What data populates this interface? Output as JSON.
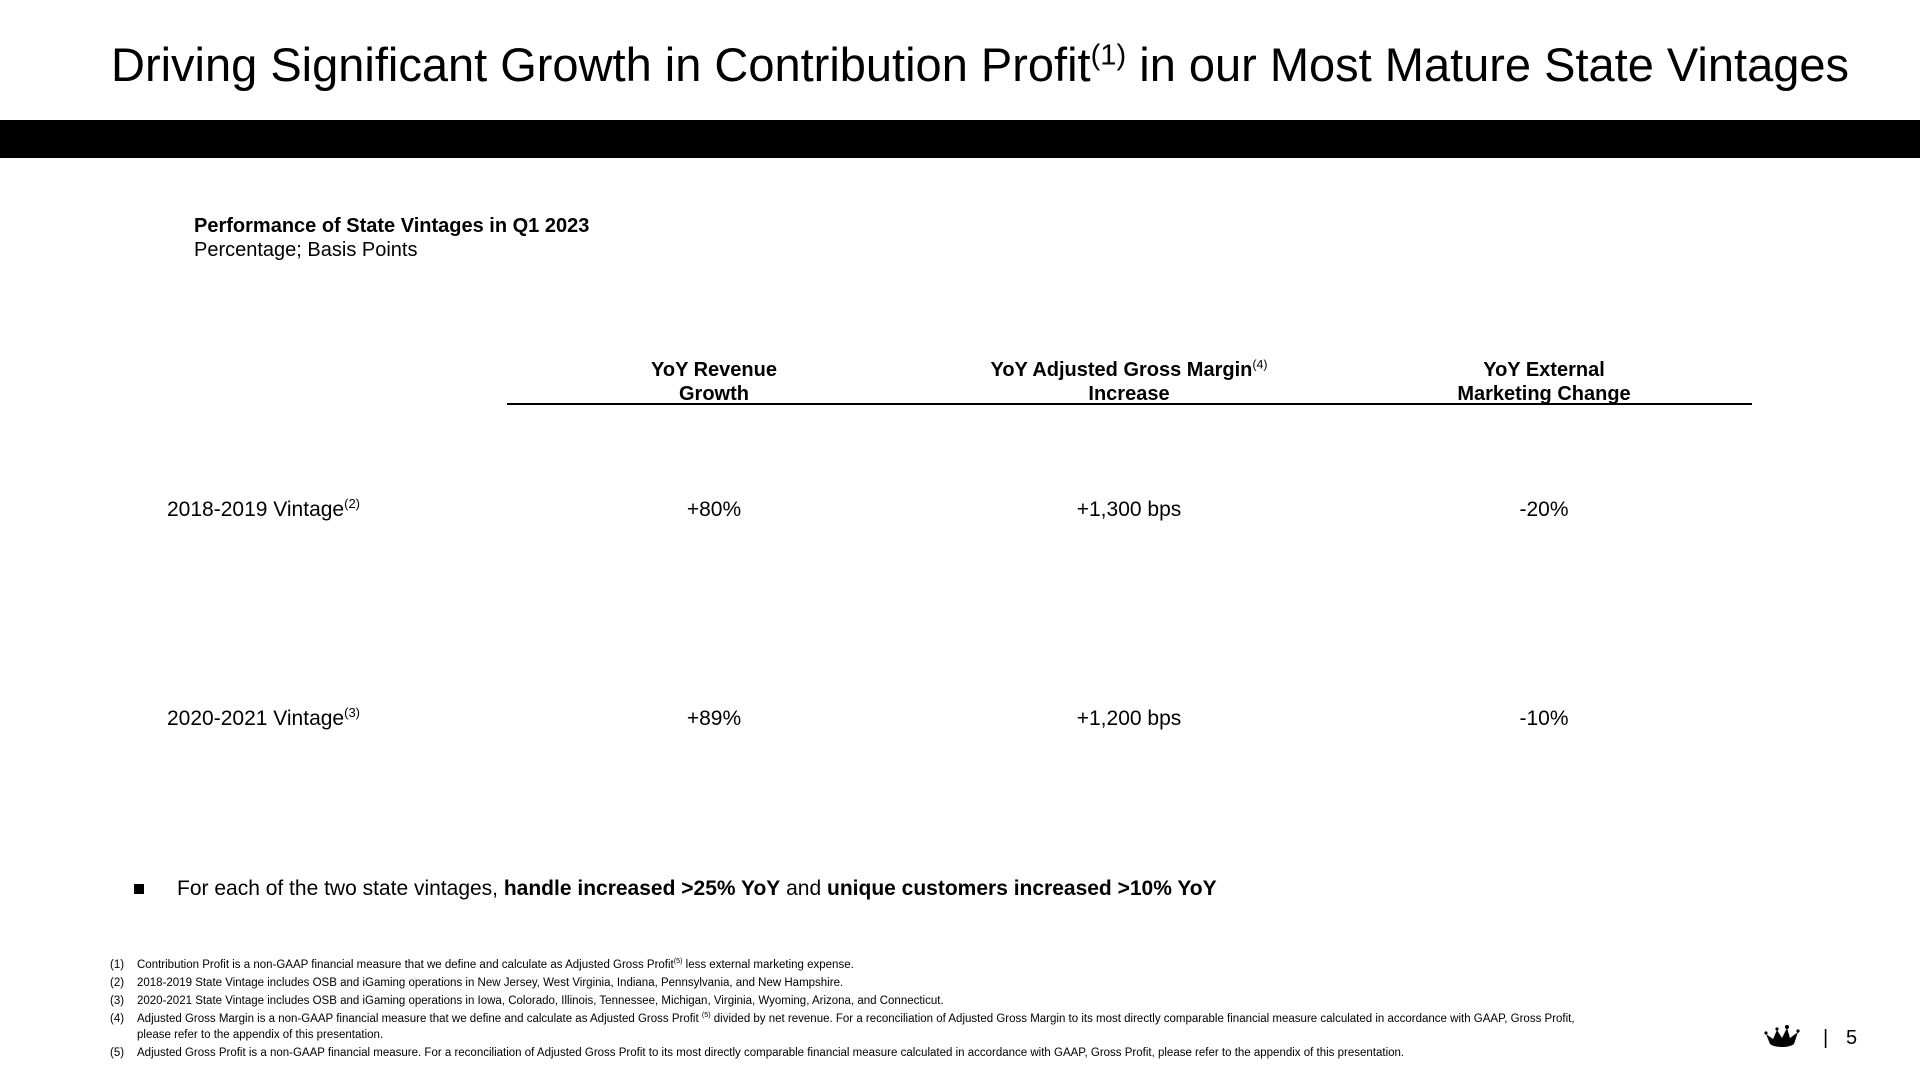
{
  "slide": {
    "title": "Driving Significant Growth in Contribution Profit",
    "title_sup": "(1)",
    "title_rest": " in our Most Mature State Vintages",
    "subtitle": "Performance of State Vintages in Q1 2023",
    "subtitle_units": "Percentage; Basis Points"
  },
  "table": {
    "columns": [
      {
        "line1": "YoY Revenue",
        "sup": "",
        "line2": "Growth"
      },
      {
        "line1": "YoY Adjusted Gross Margin",
        "sup": "(4)",
        "line2": "Increase"
      },
      {
        "line1": "YoY External",
        "sup": "",
        "line2": "Marketing Change"
      }
    ],
    "rows": [
      {
        "label": "2018-2019 Vintage",
        "sup": "(2)",
        "values": [
          "+80%",
          "+1,300 bps",
          "-20%"
        ]
      },
      {
        "label": "2020-2021 Vintage",
        "sup": "(3)",
        "values": [
          "+89%",
          "+1,200 bps",
          "-10%"
        ]
      }
    ]
  },
  "bullet": {
    "part1": "For each of the two state vintages, ",
    "bold1": "handle increased >25% YoY",
    "part2": " and ",
    "bold2": "unique customers increased >10% YoY"
  },
  "footnotes": [
    {
      "num": "(1)",
      "text_a": "Contribution Profit is a non-GAAP financial measure that we define and calculate as Adjusted Gross Profit",
      "sup": "(5)",
      "text_b": " less external marketing expense.",
      "line2": ""
    },
    {
      "num": "(2)",
      "text_a": "2018-2019 State Vintage includes OSB and iGaming operations in New Jersey, West Virginia, Indiana, Pennsylvania, and New Hampshire.",
      "sup": "",
      "text_b": "",
      "line2": ""
    },
    {
      "num": "(3)",
      "text_a": "2020-2021 State Vintage includes OSB and iGaming operations in Iowa, Colorado, Illinois, Tennessee, Michigan, Virginia, Wyoming, Arizona, and Connecticut.",
      "sup": "",
      "text_b": "",
      "line2": ""
    },
    {
      "num": "(4)",
      "text_a": "Adjusted Gross Margin is a non-GAAP financial measure that we define and calculate as Adjusted Gross Profit ",
      "sup": "(5)",
      "text_b": " divided by net revenue. For a reconciliation of Adjusted Gross Margin to its most directly comparable financial measure calculated in accordance with GAAP, Gross Profit,",
      "line2": "please refer to the appendix of this presentation."
    },
    {
      "num": "(5)",
      "text_a": "Adjusted Gross Profit is a non-GAAP financial measure. For a reconciliation of Adjusted Gross Profit to its most directly comparable financial measure calculated in accordance with GAAP, Gross Profit, please refer to the appendix of this presentation.",
      "sup": "",
      "text_b": "",
      "line2": ""
    }
  ],
  "footer": {
    "logo_icon": "crown-logo-icon",
    "separator": "|",
    "page_number": "5"
  }
}
